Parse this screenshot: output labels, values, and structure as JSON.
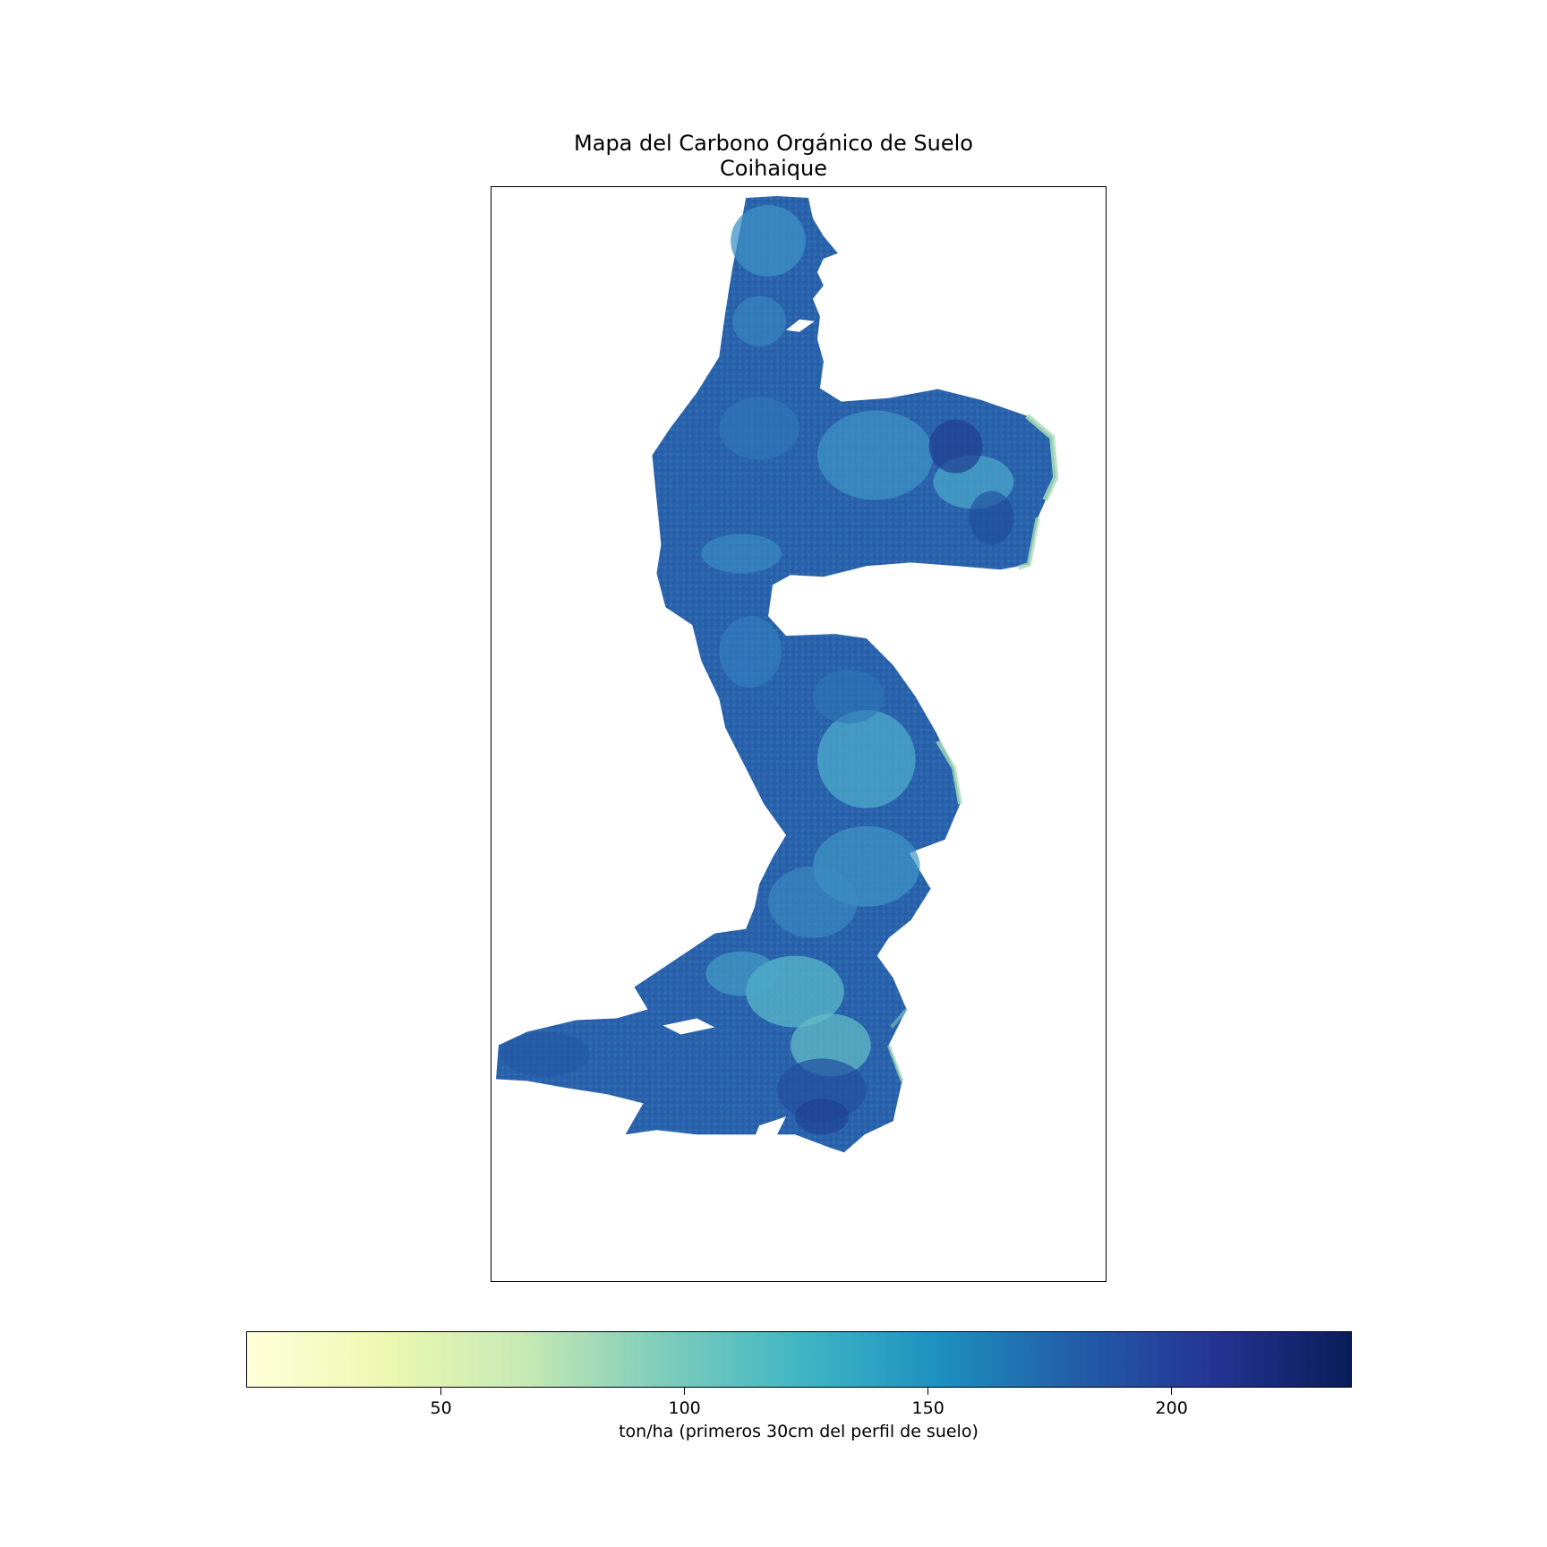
{
  "title": {
    "line1": "Mapa del Carbono Orgánico de Suelo",
    "line2": "Coihaique"
  },
  "colorbar": {
    "label": "ton/ha (primeros 30cm del perfil de suelo)",
    "vmin": 10,
    "vmax": 237,
    "ticks": [
      {
        "value": 50,
        "label": "50"
      },
      {
        "value": 100,
        "label": "100"
      },
      {
        "value": 150,
        "label": "150"
      },
      {
        "value": 200,
        "label": "200"
      }
    ],
    "colormap": "YlGnBu",
    "stops": [
      "#ffffd9",
      "#edf8b1",
      "#c7e9b4",
      "#7fcdbb",
      "#41b6c4",
      "#1d91c0",
      "#225ea8",
      "#253494",
      "#081d58"
    ]
  },
  "colors": {
    "dominant": "#2a62ac",
    "light_patches": "#4eaacb",
    "edge_highlight": "#a8dcb6",
    "dark_core": "#1f3d8f"
  }
}
